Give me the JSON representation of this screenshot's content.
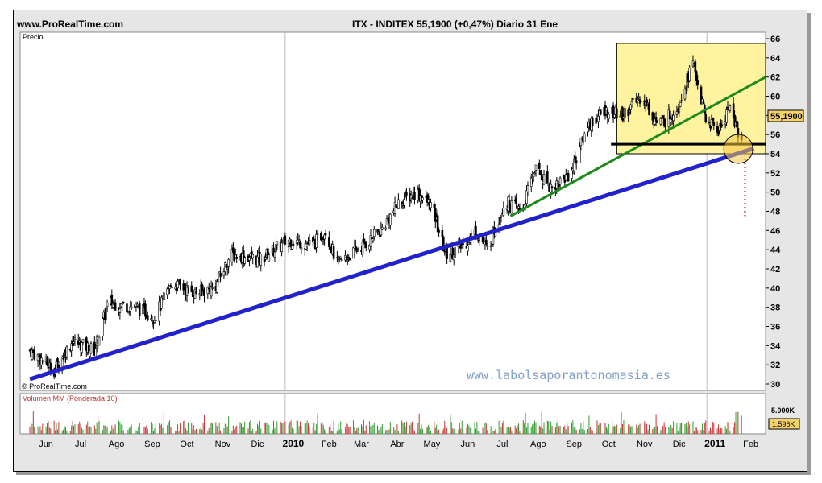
{
  "header": {
    "site": "www.ProRealTime.com",
    "title": "ITX - INDITEX    55,1900 (+0,47%)   Diario  31 Ene"
  },
  "price_panel": {
    "label": "Precio",
    "copyright": "© ProRealTime.com",
    "watermark": "www.labolsaporantonomasia.es",
    "last_price_badge": "55,1900"
  },
  "volume_panel": {
    "label": "Volumen MM (Ponderada 10)",
    "level_label": "5.000K",
    "last_volume_badge": "1.596K"
  },
  "colors": {
    "up_candle": "#ffffff",
    "down_candle": "#000000",
    "support_line": "#2222cc",
    "channel_line": "#1a8a1a",
    "zone_fill": "#fff3a0",
    "volume_up": "#2e9e2e",
    "volume_down": "#cc3333",
    "target_marker": "#cc0000"
  },
  "chart_data": {
    "type": "candlestick",
    "instrument": "ITX - INDITEX",
    "last": 55.19,
    "change_pct": 0.47,
    "ylim": [
      30,
      66
    ],
    "y_ticks": [
      30,
      32,
      34,
      36,
      38,
      40,
      42,
      44,
      46,
      48,
      50,
      52,
      54,
      56,
      58,
      60,
      62,
      64,
      66
    ],
    "x_labels": [
      "Jun",
      "Jul",
      "Ago",
      "Sep",
      "Oct",
      "Nov",
      "Dic",
      "2010",
      "Feb",
      "Mar",
      "Abr",
      "May",
      "Jun",
      "Jul",
      "Ago",
      "Sep",
      "Oct",
      "Nov",
      "Dic",
      "2011",
      "Feb"
    ],
    "approx_close_path": [
      {
        "date": "2009-05-25",
        "close": 33.5
      },
      {
        "date": "2009-06-15",
        "close": 31.5
      },
      {
        "date": "2009-07-01",
        "close": 34.5
      },
      {
        "date": "2009-07-20",
        "close": 33.5
      },
      {
        "date": "2009-08-01",
        "close": 38.5
      },
      {
        "date": "2009-08-25",
        "close": 38.0
      },
      {
        "date": "2009-09-10",
        "close": 37.0
      },
      {
        "date": "2009-09-25",
        "close": 40.5
      },
      {
        "date": "2009-10-15",
        "close": 39.5
      },
      {
        "date": "2009-11-01",
        "close": 40.0
      },
      {
        "date": "2009-11-15",
        "close": 43.5
      },
      {
        "date": "2009-12-10",
        "close": 43.0
      },
      {
        "date": "2010-01-04",
        "close": 45.0
      },
      {
        "date": "2010-01-25",
        "close": 44.5
      },
      {
        "date": "2010-02-05",
        "close": 46.0
      },
      {
        "date": "2010-02-15",
        "close": 42.5
      },
      {
        "date": "2010-03-10",
        "close": 44.5
      },
      {
        "date": "2010-03-25",
        "close": 46.0
      },
      {
        "date": "2010-04-10",
        "close": 49.0
      },
      {
        "date": "2010-04-25",
        "close": 50.0
      },
      {
        "date": "2010-05-08",
        "close": 48.5
      },
      {
        "date": "2010-05-20",
        "close": 43.5
      },
      {
        "date": "2010-06-05",
        "close": 44.5
      },
      {
        "date": "2010-06-15",
        "close": 46.0
      },
      {
        "date": "2010-06-25",
        "close": 44.0
      },
      {
        "date": "2010-07-10",
        "close": 49.0
      },
      {
        "date": "2010-07-25",
        "close": 48.0
      },
      {
        "date": "2010-08-05",
        "close": 52.5
      },
      {
        "date": "2010-08-20",
        "close": 50.5
      },
      {
        "date": "2010-09-05",
        "close": 52.0
      },
      {
        "date": "2010-09-20",
        "close": 57.0
      },
      {
        "date": "2010-10-05",
        "close": 58.5
      },
      {
        "date": "2010-10-20",
        "close": 58.0
      },
      {
        "date": "2010-11-05",
        "close": 60.0
      },
      {
        "date": "2010-11-20",
        "close": 57.0
      },
      {
        "date": "2010-12-05",
        "close": 58.5
      },
      {
        "date": "2010-12-20",
        "close": 63.5
      },
      {
        "date": "2010-12-31",
        "close": 57.5
      },
      {
        "date": "2011-01-12",
        "close": 56.5
      },
      {
        "date": "2011-01-20",
        "close": 59.0
      },
      {
        "date": "2011-01-31",
        "close": 55.19
      }
    ],
    "overlays": {
      "support_line": {
        "from": {
          "date": "2009-05-25",
          "price": 30.5
        },
        "to": {
          "date": "2011-01-31",
          "price": 54.5
        },
        "color": "#2222cc"
      },
      "channel_line": {
        "from": {
          "date": "2010-07-15",
          "price": 47.5
        },
        "to": {
          "date": "2011-02-14",
          "price": 62.0
        },
        "color": "#1a8a1a"
      },
      "horizontal_line": {
        "from_date": "2010-10-10",
        "price": 55.0
      },
      "zone": {
        "from_date": "2010-10-15",
        "price_low": 54.0,
        "price_high": 65.5
      },
      "target_dotted": {
        "date": "2011-02-03",
        "from": 53.5,
        "to": 47.5
      }
    },
    "volume": {
      "level_ticks": [
        5000
      ],
      "last": 1596,
      "unit": "K"
    }
  }
}
